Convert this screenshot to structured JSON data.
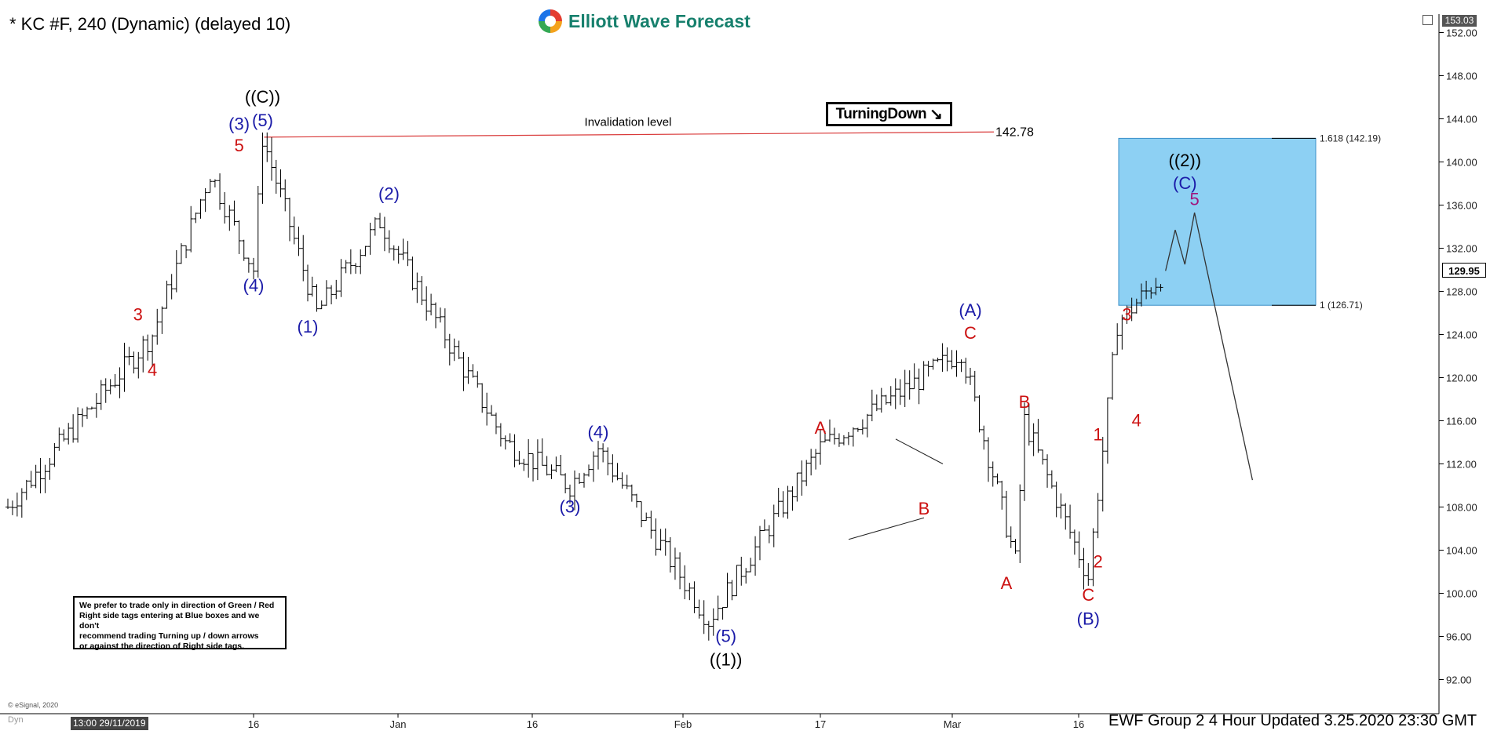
{
  "header": {
    "title": "* KC #F, 240 (Dynamic) (delayed 10)",
    "logo_text": "Elliott Wave Forecast",
    "turning_label": "TurningDown",
    "turning_arrow": "↘"
  },
  "note": {
    "lines": [
      "We prefer to trade only in direction of Green / Red",
      "Right side tags entering at Blue boxes and we don't",
      "recommend trading Turning up / down arrows",
      "or against the direction of Right side tags."
    ]
  },
  "footer": {
    "updated": "EWF Group 2 4 Hour Updated 3.25.2020 23:30 GMT",
    "esignal": "© eSignal, 2020",
    "dyn": "Dyn",
    "x_start_label": "13:00 29/11/2019",
    "top_price": "153.03",
    "last_price": "129.95"
  },
  "colors": {
    "blue_wave": "#1a1aa8",
    "red_wave": "#cc1111",
    "black_wave": "#000000",
    "blue_box": "#8dd0f3",
    "blue_box_border": "#3a8fc8",
    "invalidation_line": "#d93a3a",
    "candles": "#000000"
  },
  "chart_data": {
    "type": "ohlc",
    "symbol": "KC #F",
    "timeframe": "240",
    "ylim": [
      89,
      153
    ],
    "y_ticks": [
      92,
      96,
      100,
      104,
      108,
      112,
      116,
      120,
      124,
      128,
      132,
      136,
      140,
      144,
      148,
      152
    ],
    "x_tick_labels": [
      "16",
      "Jan",
      "16",
      "Feb",
      "17",
      "Mar",
      "16"
    ],
    "invalidation": {
      "label": "Invalidation level",
      "value_text": "142.78",
      "value": 142.78
    },
    "blue_box": {
      "top": 142.19,
      "bottom": 126.71,
      "top_label": "1.618 (142.19)",
      "bottom_label": "1 (126.71)"
    },
    "path": [
      {
        "date": "11-29",
        "price": 108
      },
      {
        "date": "12-09",
        "price": 124
      },
      {
        "date": "12-13",
        "price": 139
      },
      {
        "date": "12-16",
        "price": 130
      },
      {
        "date": "12-17",
        "price": 142.3
      },
      {
        "date": "12-23",
        "price": 126
      },
      {
        "date": "12-30",
        "price": 134.5
      },
      {
        "date": "01-13",
        "price": 114
      },
      {
        "date": "01-20",
        "price": 110
      },
      {
        "date": "01-23",
        "price": 113.5
      },
      {
        "date": "02-04",
        "price": 97.5
      },
      {
        "date": "02-17",
        "price": 113.5
      },
      {
        "date": "03-03",
        "price": 122.5
      },
      {
        "date": "03-09",
        "price": 103
      },
      {
        "date": "03-10",
        "price": 116
      },
      {
        "date": "03-17",
        "price": 101.5
      },
      {
        "date": "03-20",
        "price": 125
      },
      {
        "date": "03-25",
        "price": 129.9
      }
    ],
    "projection": [
      {
        "date": "03-25",
        "price": 129.9
      },
      {
        "date": "03-26",
        "price": 133.7
      },
      {
        "date": "03-27",
        "price": 130.5
      },
      {
        "date": "03-28",
        "price": 135.3
      },
      {
        "date": "04-03",
        "price": 110.5
      }
    ],
    "wave_labels": [
      {
        "text": "((C))",
        "date": "12-17",
        "price": 145.5,
        "color": "black"
      },
      {
        "text": "(5)",
        "date": "12-17",
        "price": 143.3,
        "color": "blue"
      },
      {
        "text": "(3)",
        "date": "12-15",
        "price": 143.0,
        "color": "blue"
      },
      {
        "text": "5",
        "date": "12-15",
        "price": 141.0,
        "color": "red"
      },
      {
        "text": "(4)",
        "date": "12-16",
        "price": 128.0,
        "color": "blue"
      },
      {
        "text": "3",
        "date": "12-08",
        "price": 125.3,
        "color": "red"
      },
      {
        "text": "4",
        "date": "12-09",
        "price": 120.2,
        "color": "red"
      },
      {
        "text": "(2)",
        "date": "12-31",
        "price": 136.5,
        "color": "blue"
      },
      {
        "text": "(1)",
        "date": "12-22",
        "price": 124.2,
        "color": "blue"
      },
      {
        "text": "(4)",
        "date": "01-23",
        "price": 114.4,
        "color": "blue"
      },
      {
        "text": "(3)",
        "date": "01-20",
        "price": 107.5,
        "color": "blue"
      },
      {
        "text": "(5)",
        "date": "02-06",
        "price": 95.5,
        "color": "blue"
      },
      {
        "text": "((1))",
        "date": "02-06",
        "price": 93.3,
        "color": "black"
      },
      {
        "text": "A",
        "date": "02-17",
        "price": 114.8,
        "color": "red"
      },
      {
        "text": "B",
        "date": "02-28",
        "price": 107.3,
        "color": "red"
      },
      {
        "text": "(A)",
        "date": "03-04",
        "price": 125.7,
        "color": "blue"
      },
      {
        "text": "C",
        "date": "03-04",
        "price": 123.6,
        "color": "red"
      },
      {
        "text": "A",
        "date": "03-08",
        "price": 100.4,
        "color": "red"
      },
      {
        "text": "B",
        "date": "03-10",
        "price": 117.2,
        "color": "red"
      },
      {
        "text": "C",
        "date": "03-17",
        "price": 99.3,
        "color": "red"
      },
      {
        "text": "(B)",
        "date": "03-17",
        "price": 97.1,
        "color": "blue"
      },
      {
        "text": "1",
        "date": "03-18",
        "price": 114.2,
        "color": "red"
      },
      {
        "text": "2",
        "date": "03-18",
        "price": 102.4,
        "color": "red"
      },
      {
        "text": "3",
        "date": "03-21",
        "price": 125.3,
        "color": "red"
      },
      {
        "text": "4",
        "date": "03-22",
        "price": 115.5,
        "color": "red"
      },
      {
        "text": "((2))",
        "date": "03-27",
        "price": 139.6,
        "color": "black"
      },
      {
        "text": "(C)",
        "date": "03-27",
        "price": 137.5,
        "color": "blue"
      },
      {
        "text": "5",
        "date": "03-28",
        "price": 136.0,
        "color": "purple"
      }
    ]
  }
}
